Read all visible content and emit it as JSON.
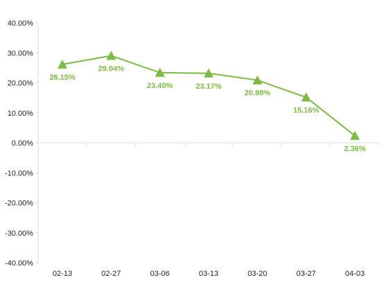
{
  "chart_data": {
    "type": "line",
    "categories": [
      "02-13",
      "02-27",
      "03-06",
      "03-13",
      "03-20",
      "03-27",
      "04-03"
    ],
    "series": [
      {
        "values": [
          26.15,
          29.04,
          23.4,
          23.17,
          20.88,
          15.16,
          2.36
        ],
        "data_labels": [
          "26.15%",
          "29.04%",
          "23.40%",
          "23.17%",
          "20.88%",
          "15.16%",
          "2.36%"
        ]
      }
    ],
    "ylim": [
      -40,
      40
    ],
    "yticks": [
      40,
      30,
      20,
      10,
      0,
      -10,
      -20,
      -30,
      -40
    ],
    "ytick_labels": [
      "40.00%",
      "30.00%",
      "20.00%",
      "10.00%",
      "0.00%",
      "-10.00%",
      "-20.00%",
      "-30.00%",
      "-40.00%"
    ],
    "marker": "triangle",
    "grid": false,
    "legend": "none",
    "color": "#7cbb41"
  }
}
